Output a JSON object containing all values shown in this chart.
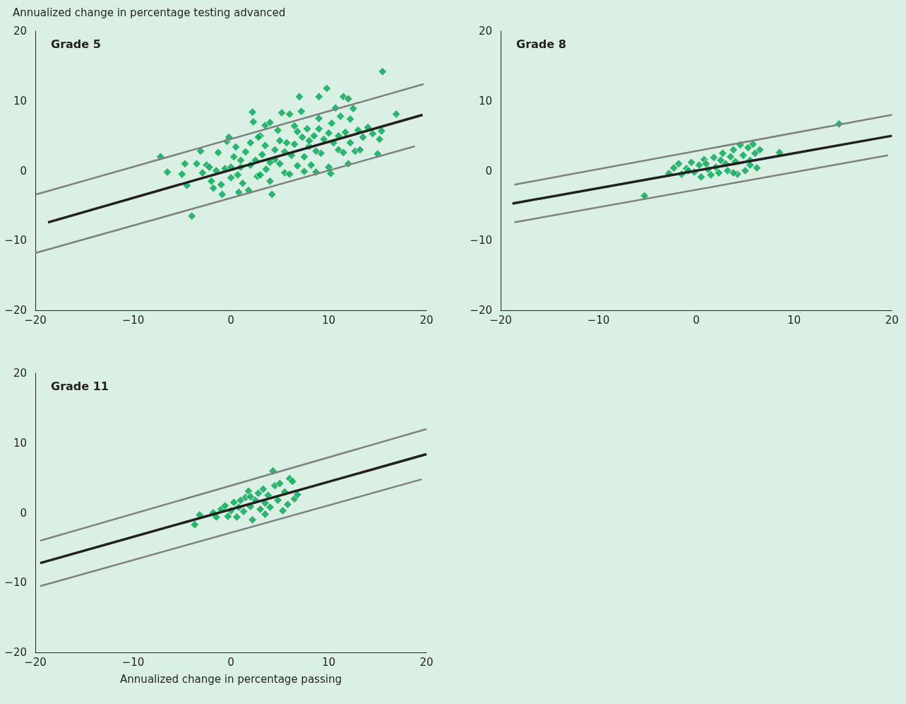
{
  "chart_data": [
    {
      "type": "scatter",
      "title": "Grade 5",
      "ylabel": "Annualized change in percentage testing advanced",
      "xlim": [
        -20,
        20
      ],
      "ylim": [
        -20,
        20
      ],
      "xticks": [
        -20,
        -10,
        0,
        10,
        20
      ],
      "yticks": [
        -20,
        -10,
        0,
        10,
        20
      ],
      "series": [
        {
          "color": "#00a651",
          "marker": "diamond",
          "x": [
            -7.2,
            -6.5,
            -5.0,
            -4.7,
            -4.5,
            -4.0,
            -3.5,
            -3.1,
            -2.9,
            -2.5,
            -2.0,
            -1.8,
            -1.3,
            -1.0,
            -0.9,
            -0.6,
            -0.4,
            -0.2,
            0,
            0.3,
            0.5,
            0.8,
            1.0,
            1.2,
            1.5,
            1.8,
            2.0,
            2.2,
            2.3,
            2.5,
            2.7,
            3.0,
            3.2,
            3.5,
            3.6,
            4.0,
            4.0,
            4.2,
            4.5,
            4.8,
            5.0,
            5.2,
            5.5,
            5.7,
            6.0,
            6.2,
            6.5,
            6.8,
            7.0,
            7.2,
            7.3,
            7.5,
            7.8,
            8.0,
            8.2,
            8.5,
            8.7,
            9.0,
            9.0,
            9.2,
            9.5,
            9.8,
            10.0,
            10.2,
            10.3,
            10.5,
            10.7,
            11.0,
            11.2,
            11.5,
            11.7,
            12.0,
            12.0,
            12.2,
            12.5,
            12.7,
            13.0,
            13.5,
            14.0,
            14.5,
            15.0,
            15.2,
            15.4,
            15.5,
            16.9,
            3.0,
            2.0,
            1.0,
            0.0,
            4.5,
            5.5,
            6.5,
            8.0,
            9.0,
            10.0,
            11.0,
            6.0,
            7.5,
            5.0,
            3.5,
            11.5,
            12.2,
            13.2,
            -1.5,
            -2.2,
            0.7,
            2.8,
            4.0,
            6.8,
            8.7
          ],
          "values": [
            2.0,
            -0.2,
            -0.5,
            1.0,
            -2.1,
            -6.5,
            1.0,
            2.8,
            -0.3,
            0.8,
            -1.5,
            -2.5,
            2.6,
            -2.0,
            -3.4,
            0.3,
            4.2,
            4.8,
            -1.0,
            2.0,
            3.4,
            -3.1,
            0.5,
            -1.8,
            2.7,
            -2.8,
            4.0,
            8.4,
            7.0,
            1.5,
            -0.8,
            5.0,
            2.3,
            6.5,
            0.2,
            6.9,
            -1.5,
            -3.4,
            3.0,
            5.8,
            1.0,
            8.3,
            -0.3,
            4.0,
            8.1,
            2.2,
            6.4,
            0.7,
            10.6,
            8.5,
            4.8,
            2.0,
            6.0,
            3.5,
            0.8,
            5.0,
            -0.2,
            10.6,
            7.5,
            2.5,
            4.5,
            11.8,
            0.5,
            -0.4,
            6.8,
            4.0,
            9.0,
            3.0,
            7.8,
            10.6,
            5.5,
            10.3,
            1.0,
            7.4,
            8.9,
            2.8,
            5.8,
            4.8,
            6.2,
            5.3,
            2.4,
            4.5,
            5.7,
            14.2,
            8.1,
            -0.6,
            0.8,
            1.5,
            0.5,
            1.6,
            2.7,
            3.8,
            4.3,
            6.0,
            5.4,
            5.0,
            -0.5,
            -0.1,
            4.3,
            3.6,
            2.6,
            4.0,
            3.0,
            0.0,
            0.5,
            -0.6,
            4.8,
            1.2,
            5.6,
            2.8
          ]
        },
        {
          "type": "line",
          "color": "#231f20",
          "marker": "none",
          "line_style": "solid",
          "x": [
            -18.7,
            19.6
          ],
          "values": [
            -7.4,
            8.0
          ]
        },
        {
          "type": "line",
          "color": "#808080",
          "marker": "none",
          "line_style": "solid",
          "x": [
            -19.9,
            19.7
          ],
          "values": [
            -3.4,
            12.4
          ]
        },
        {
          "type": "line",
          "color": "#808080",
          "marker": "none",
          "line_style": "solid",
          "x": [
            -20,
            18.8
          ],
          "values": [
            -11.8,
            3.5
          ]
        }
      ]
    },
    {
      "type": "scatter",
      "title": "Grade 8",
      "xlim": [
        -20,
        20
      ],
      "ylim": [
        -20,
        20
      ],
      "xticks": [
        -20,
        -10,
        0,
        10,
        20
      ],
      "yticks": [
        -20,
        -10,
        0,
        10,
        20
      ],
      "series": [
        {
          "color": "#00a651",
          "marker": "diamond",
          "x": [
            -5.3,
            14.6,
            8.5,
            -2.8,
            -2.3,
            -1.8,
            -1.5,
            -1.0,
            -0.5,
            -0.2,
            0.3,
            0.5,
            0.8,
            1.2,
            1.5,
            1.8,
            2.0,
            2.3,
            2.7,
            3.0,
            3.2,
            3.5,
            3.8,
            4.0,
            4.2,
            4.5,
            4.8,
            5.0,
            5.3,
            5.5,
            5.8,
            6.0,
            6.2,
            6.5,
            2.5,
            1.0,
            -0.8,
            3.8,
            5.5
          ],
          "values": [
            -3.6,
            6.7,
            2.6,
            -0.4,
            0.4,
            1.0,
            -0.5,
            0.3,
            1.2,
            -0.2,
            0.8,
            -0.9,
            1.6,
            0.2,
            -0.6,
            1.9,
            0.5,
            -0.3,
            2.5,
            1.0,
            0.0,
            2.0,
            3.0,
            1.3,
            -0.5,
            3.7,
            2.2,
            0.0,
            3.3,
            1.5,
            3.8,
            2.5,
            0.4,
            3.0,
            1.5,
            1.0,
            0.0,
            -0.3,
            0.8
          ]
        },
        {
          "type": "line",
          "color": "#231f20",
          "marker": "none",
          "line_style": "solid",
          "x": [
            -18.8,
            20
          ],
          "values": [
            -4.7,
            5.0
          ]
        },
        {
          "type": "line",
          "color": "#808080",
          "marker": "none",
          "line_style": "solid",
          "x": [
            -18.6,
            20
          ],
          "values": [
            -2.0,
            8.0
          ]
        },
        {
          "type": "line",
          "color": "#808080",
          "marker": "none",
          "line_style": "solid",
          "x": [
            -18.6,
            19.6
          ],
          "values": [
            -7.4,
            2.2
          ]
        }
      ]
    },
    {
      "type": "scatter",
      "title": "Grade 11",
      "xlabel": "Annualized change in percentage passing",
      "xlim": [
        -20,
        20
      ],
      "ylim": [
        -20,
        20
      ],
      "xticks": [
        -20,
        -10,
        0,
        10,
        20
      ],
      "yticks": [
        -20,
        -10,
        0,
        10,
        20
      ],
      "series": [
        {
          "color": "#00a651",
          "marker": "diamond",
          "x": [
            -1.8,
            -1.5,
            -1.0,
            -0.6,
            -0.3,
            0.0,
            0.3,
            0.6,
            0.8,
            1.0,
            1.3,
            1.5,
            1.8,
            2.0,
            2.2,
            2.5,
            2.8,
            3.0,
            3.3,
            3.5,
            3.8,
            4.0,
            4.3,
            4.5,
            4.8,
            5.0,
            5.3,
            5.5,
            5.8,
            6.0,
            6.3,
            6.5,
            6.8,
            -3.7,
            -3.2,
            2.0,
            3.5
          ],
          "values": [
            0.0,
            -0.6,
            0.5,
            1.0,
            -0.5,
            0.3,
            1.5,
            -0.6,
            0.8,
            1.8,
            0.2,
            2.2,
            3.1,
            0.9,
            -1.0,
            1.8,
            2.8,
            0.5,
            3.4,
            1.4,
            2.5,
            0.8,
            6.0,
            3.9,
            1.8,
            4.2,
            0.3,
            3.0,
            1.2,
            4.9,
            4.5,
            2.0,
            2.6,
            -1.7,
            -0.3,
            2.3,
            -0.2
          ]
        },
        {
          "type": "line",
          "color": "#231f20",
          "marker": "none",
          "line_style": "solid",
          "x": [
            -19.5,
            20
          ],
          "values": [
            -7.2,
            8.4
          ]
        },
        {
          "type": "line",
          "color": "#808080",
          "marker": "none",
          "line_style": "solid",
          "x": [
            -19.5,
            20
          ],
          "values": [
            -4.0,
            12.0
          ]
        },
        {
          "type": "line",
          "color": "#808080",
          "marker": "none",
          "line_style": "solid",
          "x": [
            -19.5,
            19.5
          ],
          "values": [
            -10.5,
            4.8
          ]
        }
      ]
    }
  ]
}
